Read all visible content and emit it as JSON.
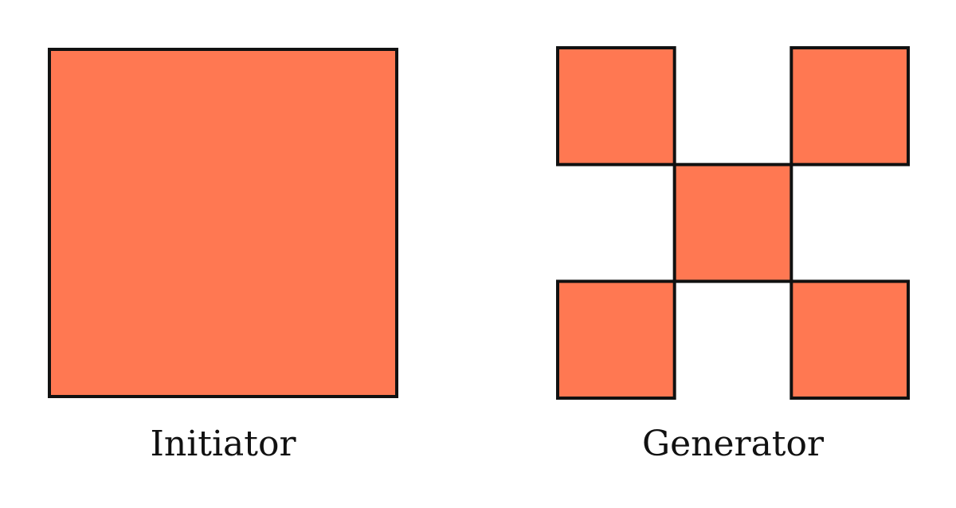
{
  "figure": {
    "fill_color": "#FF7852",
    "stroke_color": "#111111",
    "initiator": {
      "label": "Initiator"
    },
    "generator": {
      "label": "Generator",
      "grid_size": 3,
      "filled_cells": [
        {
          "row": 0,
          "col": 0
        },
        {
          "row": 0,
          "col": 2
        },
        {
          "row": 1,
          "col": 1
        },
        {
          "row": 2,
          "col": 0
        },
        {
          "row": 2,
          "col": 2
        }
      ]
    }
  }
}
